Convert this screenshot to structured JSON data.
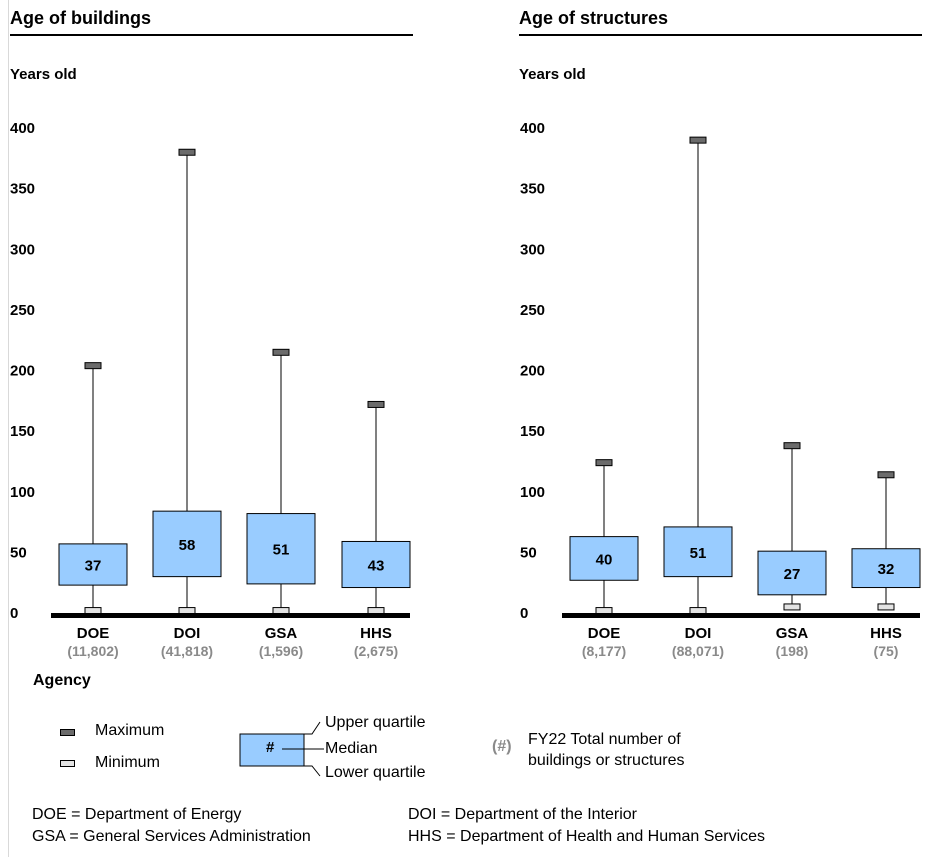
{
  "panels": [
    {
      "title": "Age of buildings",
      "ylabel": "Years old",
      "yticks": [
        "400",
        "350",
        "300",
        "250",
        "200",
        "150",
        "100",
        "50",
        "0"
      ]
    },
    {
      "title": "Age of structures",
      "ylabel": "Years old",
      "yticks": [
        "400",
        "350",
        "300",
        "250",
        "200",
        "150",
        "100",
        "50",
        "0"
      ]
    }
  ],
  "xlabel": "Agency",
  "legend": {
    "maximum": "Maximum",
    "minimum": "Minimum",
    "box_symbol": "#",
    "upper_quartile": "Upper quartile",
    "median": "Median",
    "lower_quartile": "Lower  quartile",
    "count_symbol": "(#)",
    "count_line1": "FY22 Total number of",
    "count_line2": "buildings or structures"
  },
  "abbreviations": {
    "doe": "DOE = Department of Energy",
    "doi": "DOI = Department of the Interior",
    "gsa": "GSA = General Services Administration",
    "hhs": "HHS = Department of Health and Human Services"
  },
  "colors": {
    "box_fill": "#99ccff",
    "max_marker": "#6b6b6b",
    "min_marker": "#e3e3e3",
    "count_text": "#8a8a8a"
  },
  "chart_data": [
    {
      "type": "boxplot",
      "title": "Age of buildings",
      "ylabel": "Years old",
      "xlabel": "Agency",
      "ylim": [
        0,
        400
      ],
      "categories": [
        "DOE",
        "DOI",
        "GSA",
        "HHS"
      ],
      "counts": [
        "(11,802)",
        "(41,818)",
        "(1,596)",
        "(2,675)"
      ],
      "max": [
        204,
        380,
        215,
        172
      ],
      "upper_quartile": [
        57,
        84,
        82,
        59
      ],
      "median": [
        37,
        58,
        51,
        43
      ],
      "lower_quartile": [
        23,
        30,
        24,
        21
      ],
      "min": [
        2,
        2,
        2,
        2
      ]
    },
    {
      "type": "boxplot",
      "title": "Age of structures",
      "ylabel": "Years old",
      "xlabel": "Agency",
      "ylim": [
        0,
        400
      ],
      "categories": [
        "DOE",
        "DOI",
        "GSA",
        "HHS"
      ],
      "counts": [
        "(8,177)",
        "(88,071)",
        "(198)",
        "(75)"
      ],
      "max": [
        124,
        390,
        138,
        114
      ],
      "upper_quartile": [
        63,
        71,
        51,
        53
      ],
      "median": [
        40,
        51,
        27,
        32
      ],
      "lower_quartile": [
        27,
        30,
        15,
        21
      ],
      "min": [
        2,
        2,
        5,
        5
      ]
    }
  ]
}
